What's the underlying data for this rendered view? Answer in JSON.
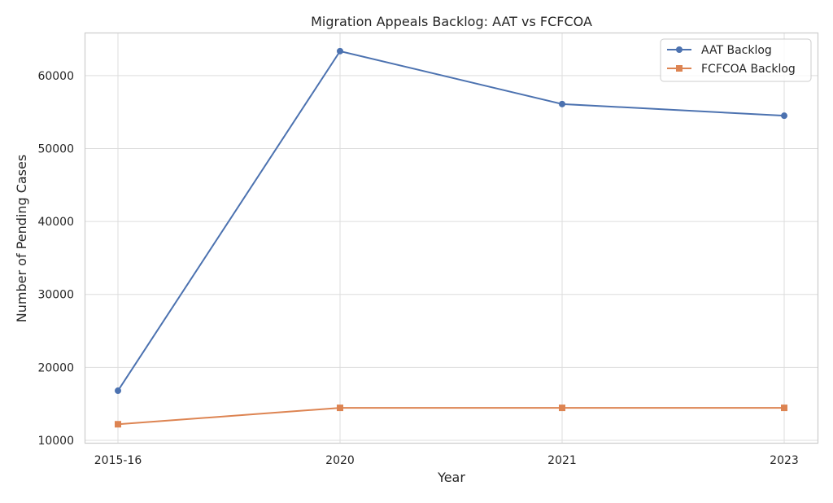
{
  "chart_data": {
    "type": "line",
    "title": "Migration Appeals Backlog: AAT vs FCFCOA",
    "xlabel": "Year",
    "ylabel": "Number of Pending Cases",
    "categories": [
      "2015-16",
      "2020",
      "2021",
      "2023"
    ],
    "ylim": [
      9550,
      65900
    ],
    "yticks": [
      10000,
      20000,
      30000,
      40000,
      50000,
      60000
    ],
    "grid": true,
    "legend_position": "top-right",
    "series": [
      {
        "name": "AAT Backlog",
        "values": [
          16800,
          63350,
          56100,
          54500
        ],
        "color": "#4c72b0",
        "marker": "circle"
      },
      {
        "name": "FCFCOA Backlog",
        "values": [
          12200,
          14450,
          14450,
          14450
        ],
        "color": "#dd8452",
        "marker": "square"
      }
    ]
  }
}
